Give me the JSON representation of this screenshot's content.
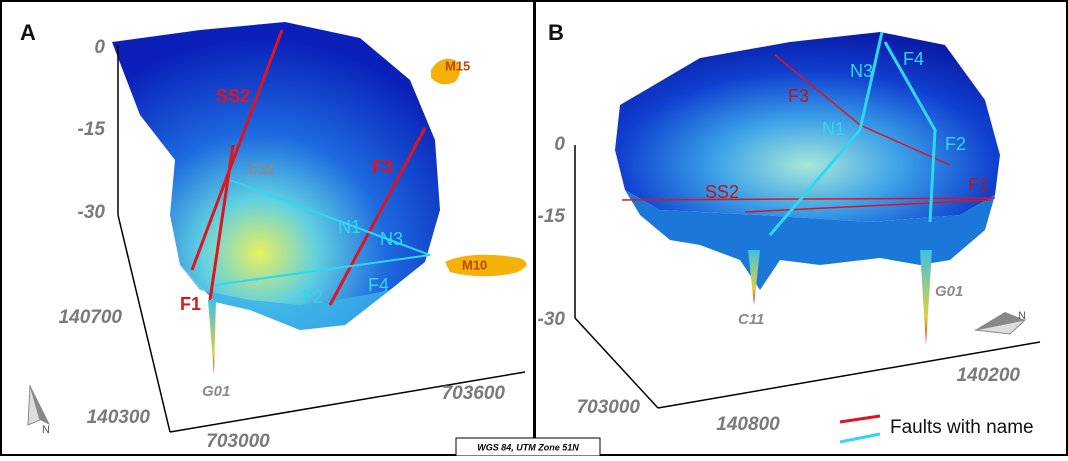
{
  "panels": [
    {
      "label": "A",
      "z_ticks": [
        "0",
        "-15",
        "-30"
      ],
      "y_ticks": [
        "140700",
        "140300"
      ],
      "x_ticks": [
        "703000",
        "703600"
      ],
      "features": {
        "ss2": "SS2",
        "c11": "C11",
        "f3": "F3",
        "n1": "N1",
        "n3": "N3",
        "m10": "M10",
        "m15": "M15",
        "f1": "F1",
        "f2": "F2",
        "f4": "F4",
        "g01": "G01"
      },
      "north": "N"
    },
    {
      "label": "B",
      "z_ticks": [
        "0",
        "-15",
        "-30"
      ],
      "y_ticks": [
        "140800",
        "140200"
      ],
      "x_ticks": [
        "703000"
      ],
      "features": {
        "n3": "N3",
        "f4": "F4",
        "f3": "F3",
        "n1": "N1",
        "f2": "F2",
        "ss2": "SS2",
        "f1": "F1",
        "c11": "C11",
        "g01": "G01"
      },
      "north": "N"
    }
  ],
  "legend": {
    "label": "Faults with name"
  },
  "crs": "WGS 84, UTM Zone 51N"
}
